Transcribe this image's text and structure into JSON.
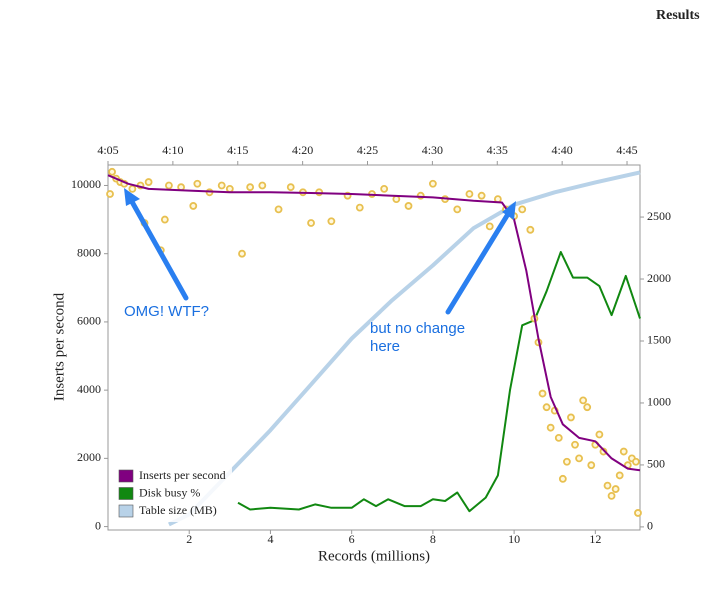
{
  "page_title": "Results",
  "chart_data": {
    "type": "line",
    "y_label": "Inserts per second",
    "x_label": "Records (millions)",
    "xlim": [
      0,
      13.1
    ],
    "xticks": [
      2,
      4,
      6,
      8,
      10,
      12
    ],
    "ylim": [
      -100,
      10600
    ],
    "yticks": [
      0,
      2000,
      4000,
      6000,
      8000,
      10000
    ],
    "y2lim": [
      -25,
      2920
    ],
    "y2ticks": [
      0,
      500,
      1000,
      1500,
      2000,
      2500
    ],
    "x2lim": [
      5,
      46
    ],
    "x2ticks": [
      {
        "value": 5,
        "label": "4:05"
      },
      {
        "value": 10,
        "label": "4:10"
      },
      {
        "value": 15,
        "label": "4:15"
      },
      {
        "value": 20,
        "label": "4:20"
      },
      {
        "value": 25,
        "label": "4:25"
      },
      {
        "value": 30,
        "label": "4:30"
      },
      {
        "value": 35,
        "label": "4:35"
      },
      {
        "value": 40,
        "label": "4:40"
      },
      {
        "value": 45,
        "label": "4:45"
      }
    ],
    "legend": "lower left",
    "series": [
      {
        "name": "Inserts per second",
        "color": "#800080",
        "x": [
          0,
          0.5,
          1,
          2,
          3,
          4,
          5,
          6,
          7,
          8,
          9,
          9.7,
          10,
          10.3,
          10.6,
          10.9,
          11.2,
          11.6,
          12,
          12.4,
          12.8,
          13.1
        ],
        "values": [
          10300,
          10050,
          9900,
          9850,
          9800,
          9800,
          9780,
          9750,
          9700,
          9650,
          9550,
          9500,
          9000,
          7500,
          5500,
          3800,
          3000,
          2600,
          2500,
          2000,
          1700,
          1650
        ]
      },
      {
        "name": "Disk busy %",
        "color": "#118811",
        "x": [
          3.2,
          3.5,
          4,
          4.7,
          5.1,
          5.5,
          6,
          6.3,
          6.6,
          6.9,
          7.3,
          7.7,
          8,
          8.3,
          8.6,
          8.9,
          9.3,
          9.6,
          9.9,
          10.2,
          10.5,
          10.8,
          11.15,
          11.45,
          11.8,
          12.1,
          12.4,
          12.75,
          13.1
        ],
        "values": [
          700,
          500,
          550,
          500,
          650,
          550,
          550,
          800,
          600,
          800,
          600,
          600,
          800,
          750,
          1000,
          450,
          850,
          1500,
          4000,
          5900,
          6050,
          6900,
          8050,
          7300,
          7300,
          7050,
          6200,
          7350,
          6100
        ]
      },
      {
        "name": "Table size (MB)",
        "color": "#b8d2e8",
        "axis": "y2",
        "x": [
          1.5,
          2,
          3,
          4,
          5,
          6,
          7,
          8,
          9,
          10,
          11,
          12,
          13.1
        ],
        "values": [
          20,
          100,
          440,
          780,
          1150,
          1520,
          1830,
          2110,
          2410,
          2600,
          2700,
          2780,
          2860
        ]
      }
    ],
    "points": {
      "color": "#e8c050",
      "x": [
        0.05,
        0.1,
        0.2,
        0.3,
        0.4,
        0.6,
        0.8,
        0.9,
        1.0,
        1.3,
        1.4,
        1.5,
        1.8,
        2.1,
        2.2,
        2.5,
        2.8,
        3.0,
        3.3,
        3.5,
        3.8,
        4.2,
        4.5,
        4.8,
        5.0,
        5.2,
        5.5,
        5.9,
        6.2,
        6.5,
        6.8,
        7.1,
        7.4,
        7.7,
        8.0,
        8.3,
        8.6,
        8.9,
        9.2,
        9.4,
        9.6,
        9.8,
        10.0,
        10.2,
        10.4,
        10.5,
        10.6,
        10.7,
        10.8,
        10.9,
        11.0,
        11.1,
        11.2,
        11.3,
        11.4,
        11.5,
        11.6,
        11.7,
        11.8,
        11.9,
        12.0,
        12.1,
        12.2,
        12.3,
        12.4,
        12.5,
        12.6,
        12.7,
        12.8,
        12.9,
        13.0,
        13.05
      ],
      "y": [
        9750,
        10400,
        10200,
        10100,
        10050,
        9900,
        10000,
        8900,
        10100,
        8100,
        9000,
        10000,
        9950,
        9400,
        10050,
        9800,
        10000,
        9900,
        8000,
        9950,
        10000,
        9300,
        9950,
        9800,
        8900,
        9800,
        8950,
        9700,
        9350,
        9750,
        9900,
        9600,
        9400,
        9700,
        10050,
        9600,
        9300,
        9750,
        9700,
        8800,
        9600,
        9300,
        9100,
        9300,
        8700,
        6100,
        5400,
        3900,
        3500,
        2900,
        3400,
        2600,
        1400,
        1900,
        3200,
        2400,
        2000,
        3700,
        3500,
        1800,
        2400,
        2700,
        2200,
        1200,
        900,
        1100,
        1500,
        2200,
        1800,
        2000,
        1900,
        400
      ]
    },
    "annotations": [
      "OMG! WTF?",
      "but no change here"
    ]
  }
}
